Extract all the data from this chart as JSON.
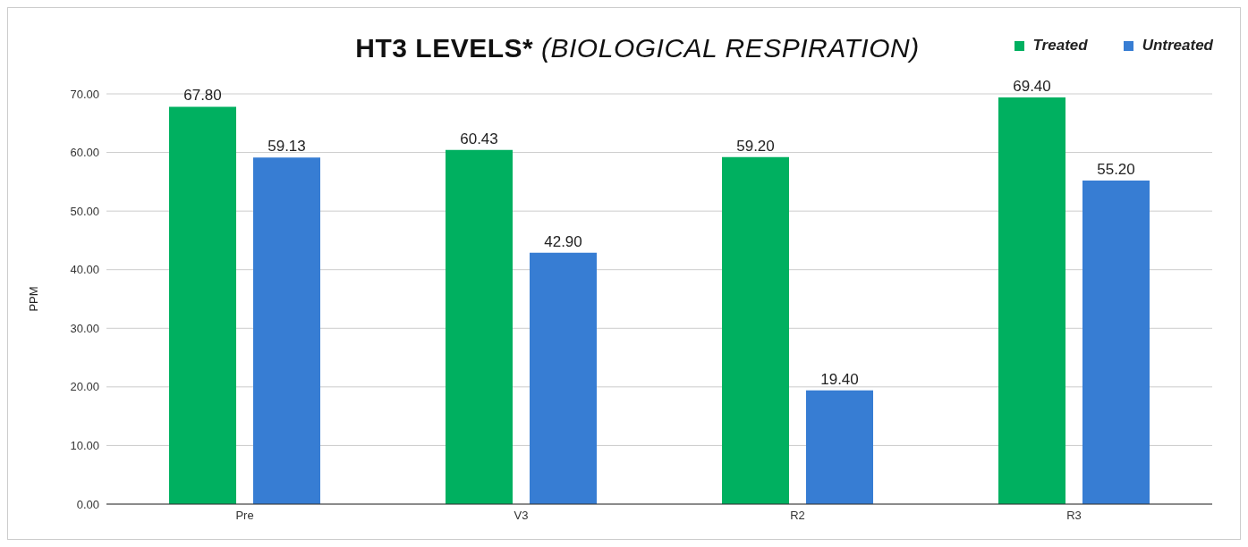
{
  "chart_data": {
    "type": "bar",
    "title": "HT3 LEVELS* (BIOLOGICAL RESPIRATION)",
    "ylabel": "PPM",
    "categories": [
      "Pre",
      "V3",
      "R2",
      "R3"
    ],
    "series": [
      {
        "name": "Treated",
        "color": "#00b060",
        "values": [
          67.8,
          60.43,
          59.2,
          69.4
        ],
        "value_labels": [
          "67.80",
          "60.43",
          "59.20",
          "69.40"
        ]
      },
      {
        "name": "Untreated",
        "color": "#377dd3",
        "values": [
          59.13,
          42.9,
          19.4,
          55.2
        ],
        "value_labels": [
          "59.13",
          "42.90",
          "19.40",
          "55.20"
        ]
      }
    ],
    "ylim": [
      0,
      70
    ],
    "yticks": [
      {
        "value": 0,
        "label": "0.00"
      },
      {
        "value": 10,
        "label": "10.00"
      },
      {
        "value": 20,
        "label": "20.00"
      },
      {
        "value": 30,
        "label": "30.00"
      },
      {
        "value": 40,
        "label": "40.00"
      },
      {
        "value": 50,
        "label": "50.00"
      },
      {
        "value": 60,
        "label": "60.00"
      },
      {
        "value": 70,
        "label": "70.00"
      }
    ],
    "grid": "y",
    "legend": "top right"
  }
}
